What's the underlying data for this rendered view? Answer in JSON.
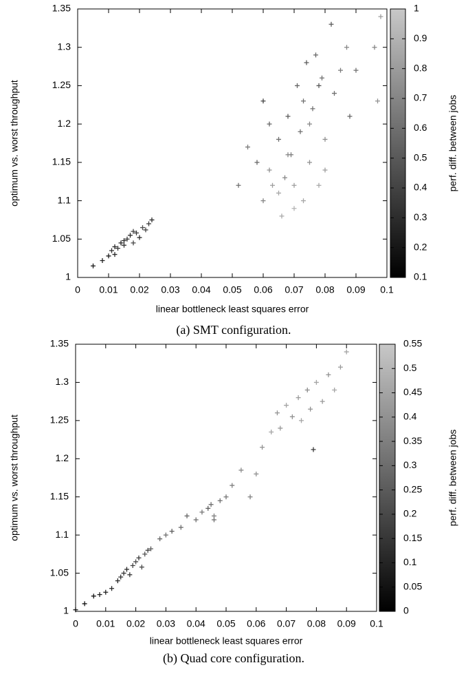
{
  "chart_data": [
    {
      "type": "scatter",
      "x_label": "linear bottleneck least squares error",
      "y_label": "optimum vs. worst throughput",
      "colorbar_label": "perf. diff. between jobs",
      "caption": "(a) SMT configuration.",
      "xlim": [
        0,
        0.1
      ],
      "ylim": [
        1,
        1.35
      ],
      "clim": [
        0.1,
        1
      ],
      "xticks": [
        0,
        0.01,
        0.02,
        0.03,
        0.04,
        0.05,
        0.06,
        0.07,
        0.08,
        0.09,
        0.1
      ],
      "yticks": [
        1,
        1.05,
        1.1,
        1.15,
        1.2,
        1.25,
        1.3,
        1.35
      ],
      "cticks": [
        0.1,
        0.2,
        0.3,
        0.4,
        0.5,
        0.6,
        0.7,
        0.8,
        0.9,
        1
      ],
      "x": [
        0.005,
        0.008,
        0.01,
        0.011,
        0.012,
        0.013,
        0.014,
        0.015,
        0.016,
        0.017,
        0.018,
        0.019,
        0.02,
        0.021,
        0.022,
        0.023,
        0.024,
        0.012,
        0.015,
        0.018,
        0.052,
        0.055,
        0.058,
        0.06,
        0.06,
        0.062,
        0.063,
        0.065,
        0.066,
        0.067,
        0.068,
        0.069,
        0.07,
        0.071,
        0.072,
        0.073,
        0.074,
        0.075,
        0.076,
        0.077,
        0.078,
        0.079,
        0.08,
        0.082,
        0.083,
        0.085,
        0.087,
        0.088,
        0.09,
        0.096,
        0.097,
        0.098,
        0.065,
        0.07,
        0.075,
        0.08,
        0.062,
        0.068,
        0.073,
        0.078
      ],
      "values": [
        1.015,
        1.022,
        1.028,
        1.035,
        1.04,
        1.038,
        1.045,
        1.048,
        1.05,
        1.055,
        1.045,
        1.058,
        1.052,
        1.065,
        1.062,
        1.07,
        1.075,
        1.03,
        1.042,
        1.06,
        1.12,
        1.17,
        1.15,
        1.23,
        1.1,
        1.14,
        1.12,
        1.18,
        1.08,
        1.13,
        1.21,
        1.16,
        1.12,
        1.25,
        1.19,
        1.1,
        1.28,
        1.15,
        1.22,
        1.29,
        1.12,
        1.26,
        1.18,
        1.33,
        1.24,
        1.27,
        1.3,
        1.21,
        1.27,
        1.3,
        1.23,
        1.34,
        1.11,
        1.09,
        1.2,
        1.14,
        1.2,
        1.16,
        1.23,
        1.25
      ],
      "color_values": [
        0.2,
        0.25,
        0.22,
        0.3,
        0.28,
        0.35,
        0.25,
        0.3,
        0.32,
        0.27,
        0.4,
        0.35,
        0.3,
        0.45,
        0.4,
        0.35,
        0.3,
        0.28,
        0.33,
        0.38,
        0.6,
        0.65,
        0.55,
        0.4,
        0.7,
        0.75,
        0.8,
        0.6,
        0.85,
        0.7,
        0.5,
        0.65,
        0.8,
        0.55,
        0.6,
        0.85,
        0.5,
        0.75,
        0.6,
        0.55,
        0.85,
        0.6,
        0.75,
        0.5,
        0.6,
        0.65,
        0.7,
        0.55,
        0.6,
        0.7,
        0.75,
        0.8,
        0.85,
        0.9,
        0.7,
        0.8,
        0.55,
        0.7,
        0.6,
        0.5
      ]
    },
    {
      "type": "scatter",
      "x_label": "linear bottleneck least squares error",
      "y_label": "optimum vs. worst throughput",
      "colorbar_label": "perf. diff. between jobs",
      "caption": "(b) Quad core configuration.",
      "xlim": [
        0,
        0.1
      ],
      "ylim": [
        1,
        1.35
      ],
      "clim": [
        0,
        0.55
      ],
      "xticks": [
        0,
        0.01,
        0.02,
        0.03,
        0.04,
        0.05,
        0.06,
        0.07,
        0.08,
        0.09,
        0.1
      ],
      "yticks": [
        1,
        1.05,
        1.1,
        1.15,
        1.2,
        1.25,
        1.3,
        1.35
      ],
      "cticks": [
        0,
        0.05,
        0.1,
        0.15,
        0.2,
        0.25,
        0.3,
        0.35,
        0.4,
        0.45,
        0.5,
        0.55
      ],
      "x": [
        0.0,
        0.003,
        0.006,
        0.008,
        0.01,
        0.012,
        0.014,
        0.015,
        0.016,
        0.017,
        0.018,
        0.019,
        0.02,
        0.021,
        0.022,
        0.023,
        0.024,
        0.025,
        0.028,
        0.03,
        0.032,
        0.035,
        0.037,
        0.04,
        0.042,
        0.044,
        0.045,
        0.046,
        0.048,
        0.05,
        0.052,
        0.055,
        0.058,
        0.06,
        0.062,
        0.065,
        0.067,
        0.068,
        0.07,
        0.072,
        0.074,
        0.075,
        0.077,
        0.078,
        0.08,
        0.082,
        0.084,
        0.086,
        0.088,
        0.09,
        0.046,
        0.079
      ],
      "values": [
        1.002,
        1.01,
        1.02,
        1.022,
        1.025,
        1.03,
        1.04,
        1.045,
        1.05,
        1.055,
        1.048,
        1.06,
        1.065,
        1.07,
        1.058,
        1.075,
        1.08,
        1.082,
        1.095,
        1.1,
        1.105,
        1.11,
        1.125,
        1.12,
        1.13,
        1.135,
        1.14,
        1.125,
        1.145,
        1.15,
        1.165,
        1.185,
        1.15,
        1.18,
        1.215,
        1.235,
        1.26,
        1.24,
        1.27,
        1.255,
        1.28,
        1.25,
        1.29,
        1.265,
        1.3,
        1.275,
        1.31,
        1.29,
        1.32,
        1.34,
        1.12,
        1.212
      ],
      "color_values": [
        0.02,
        0.05,
        0.05,
        0.08,
        0.08,
        0.1,
        0.1,
        0.12,
        0.15,
        0.1,
        0.15,
        0.18,
        0.2,
        0.15,
        0.2,
        0.22,
        0.2,
        0.25,
        0.28,
        0.3,
        0.25,
        0.3,
        0.28,
        0.3,
        0.32,
        0.25,
        0.3,
        0.35,
        0.3,
        0.32,
        0.35,
        0.38,
        0.35,
        0.4,
        0.4,
        0.45,
        0.4,
        0.42,
        0.45,
        0.4,
        0.42,
        0.45,
        0.38,
        0.4,
        0.45,
        0.42,
        0.4,
        0.45,
        0.42,
        0.45,
        0.3,
        0.15
      ]
    }
  ]
}
